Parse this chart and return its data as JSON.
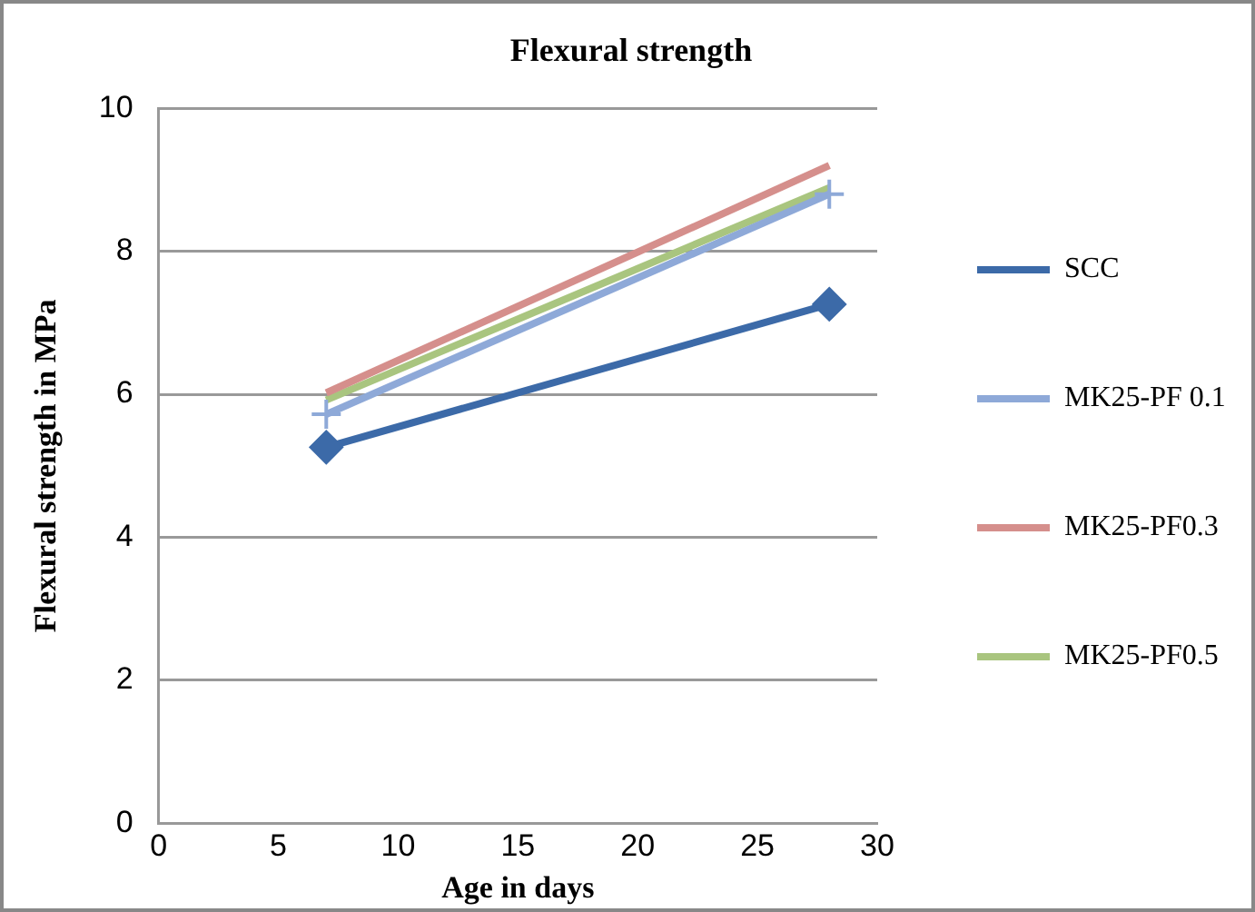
{
  "chart_data": {
    "type": "line",
    "title": "Flexural strength",
    "xlabel": "Age in days",
    "ylabel": "Flexural strength in MPa",
    "x": [
      7,
      28
    ],
    "xlim": [
      0,
      30
    ],
    "xticks": [
      0,
      5,
      10,
      15,
      20,
      25,
      30
    ],
    "ylim": [
      0,
      10
    ],
    "yticks": [
      0,
      2,
      4,
      6,
      8,
      10
    ],
    "grid": "y",
    "legend": "right",
    "series": [
      {
        "name": "SCC",
        "color": "#3c6aa8",
        "values": [
          5.26,
          7.26
        ],
        "marker": "diamond"
      },
      {
        "name": "MK25-PF 0.1",
        "color": "#8ea9d8",
        "values": [
          5.72,
          8.8
        ],
        "marker": "cross"
      },
      {
        "name": "MK25-PF0.3",
        "color": "#d58f8c",
        "values": [
          6.02,
          9.2
        ],
        "marker": "none"
      },
      {
        "name": "MK25-PF0.5",
        "color": "#a9c57f",
        "values": [
          5.92,
          8.89
        ],
        "marker": "none"
      }
    ]
  }
}
